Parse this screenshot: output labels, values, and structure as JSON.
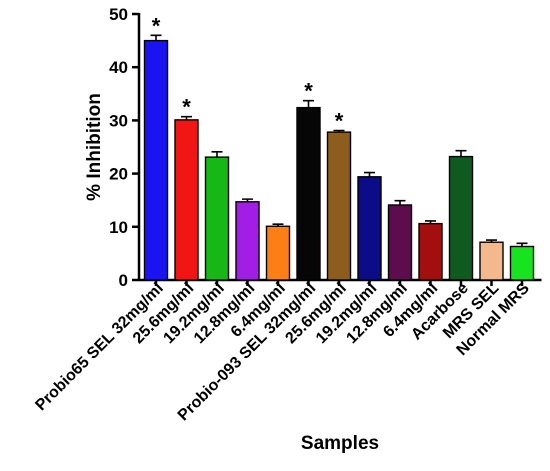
{
  "chart_data": {
    "type": "bar",
    "title": "",
    "xlabel": "Samples",
    "ylabel": "% Inhibition",
    "ylim": [
      0,
      50
    ],
    "yticks": [
      "0",
      "10",
      "20",
      "30",
      "40",
      "50"
    ],
    "grid": false,
    "categories": [
      "Probio65 SEL 32mg/ml",
      "25.6mg/ml",
      "19.2mg/ml",
      "12.8mg/ml",
      "6.4mg/ml",
      "Probio-093 SEL 32mg/ml",
      "25.6mg/ml",
      "19.2mg/ml",
      "12.8mg/ml",
      "6.4mg/ml",
      "Acarbose",
      "MRS SEL",
      "Normal MRS"
    ],
    "values": [
      45.0,
      30.1,
      23.1,
      14.7,
      10.1,
      32.4,
      27.8,
      19.4,
      14.1,
      10.6,
      23.2,
      7.1,
      6.3
    ],
    "errors": [
      1.0,
      0.6,
      1.0,
      0.5,
      0.4,
      1.3,
      0.3,
      0.8,
      0.8,
      0.5,
      1.1,
      0.4,
      0.6
    ],
    "significance": [
      "*",
      "*",
      "",
      "",
      "",
      "*",
      "*",
      "",
      "",
      "",
      "",
      "",
      ""
    ],
    "colors": [
      "#1a14f2",
      "#f01616",
      "#16b816",
      "#a21ee6",
      "#fb7f14",
      "#060606",
      "#8d5d1d",
      "#0c0c88",
      "#5d0c4d",
      "#a30f0f",
      "#0f5a1e",
      "#f3b98d",
      "#17e41f"
    ]
  }
}
